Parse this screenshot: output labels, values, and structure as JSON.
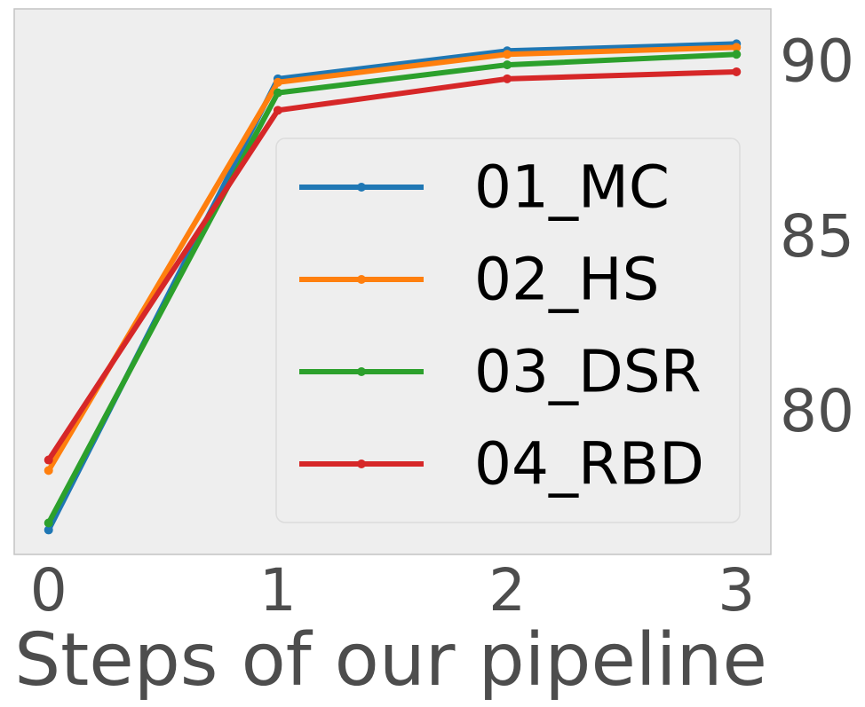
{
  "chart_data": {
    "type": "line",
    "title": "",
    "xlabel": "Steps of our pipeline",
    "ylabel": "",
    "x": [
      0,
      1,
      2,
      3
    ],
    "xticks": [
      "0",
      "1",
      "2",
      "3"
    ],
    "yticks": [
      "80",
      "85",
      "90"
    ],
    "xlim": [
      -0.15,
      3.15
    ],
    "ylim": [
      75.9,
      91.5
    ],
    "grid": false,
    "y_axis_side": "right",
    "legend_position": "lower-right",
    "series": [
      {
        "name": "01_MC",
        "color": "#1f77b4",
        "values": [
          76.6,
          89.5,
          90.3,
          90.5
        ]
      },
      {
        "name": "02_HS",
        "color": "#ff7f0e",
        "values": [
          78.3,
          89.4,
          90.2,
          90.4
        ]
      },
      {
        "name": "03_DSR",
        "color": "#2ca02c",
        "values": [
          76.8,
          89.1,
          89.9,
          90.2
        ]
      },
      {
        "name": "04_RBD",
        "color": "#d62728",
        "values": [
          78.6,
          88.6,
          89.5,
          89.7
        ]
      }
    ]
  }
}
